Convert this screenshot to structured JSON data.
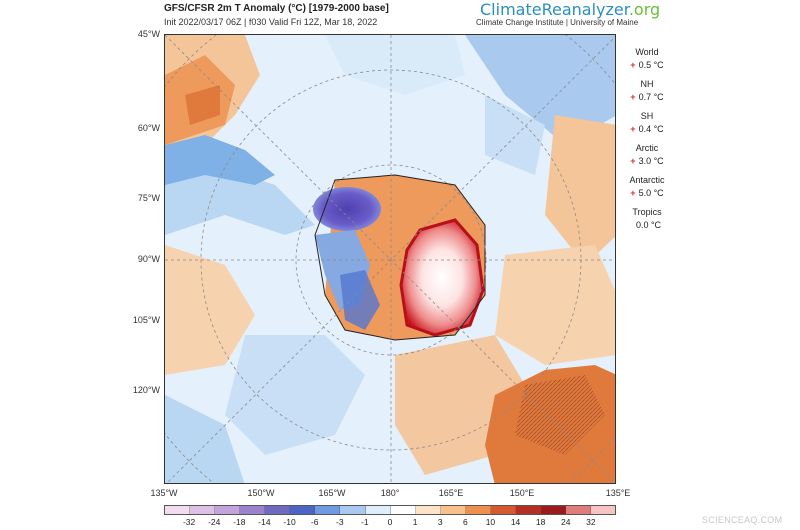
{
  "header": {
    "title": "GFS/CFSR 2m T Anomaly (°C) [1979-2000 base]",
    "subtitle": "Init 2022/03/17 06Z | f030 Valid Fri 12Z, Mar 18, 2022",
    "brand_main": "ClimateReanalyzer",
    "brand_suffix": ".org",
    "institution": "Climate Change Institute | University of Maine"
  },
  "map": {
    "projection": "polar stereographic, south pole",
    "lat_labels": [
      "45°W",
      "60°W",
      "75°W",
      "90°W",
      "105°W",
      "120°W"
    ],
    "lon_labels": [
      "135°W",
      "150°W",
      "165°W",
      "180°",
      "165°E",
      "150°E",
      "135°E"
    ],
    "regions": {
      "antarctic_interior_anomaly": "strong warm (red/white) over East Antarctica",
      "antarctic_peninsula_anomaly": "cold (blue/purple) over Weddell sector",
      "southern_ocean": "mixed light blue and orange",
      "south_america": "orange/warm with blue patches",
      "australia": "orange/warm with brown hatch"
    }
  },
  "stats": [
    {
      "name": "World",
      "sign": "+",
      "value": "0.5 °C"
    },
    {
      "name": "NH",
      "sign": "+",
      "value": "0.7 °C"
    },
    {
      "name": "SH",
      "sign": "+",
      "value": "0.4 °C"
    },
    {
      "name": "Arctic",
      "sign": "+",
      "value": "3.0 °C"
    },
    {
      "name": "Antarctic",
      "sign": "+",
      "value": "5.0 °C"
    },
    {
      "name": "Tropics",
      "sign": "",
      "value": "0.0 °C"
    }
  ],
  "colorbar": {
    "ticks": [
      "-32",
      "-24",
      "-18",
      "-14",
      "-10",
      "-6",
      "-3",
      "-1",
      "0",
      "1",
      "3",
      "6",
      "10",
      "14",
      "18",
      "24",
      "32"
    ],
    "colors": [
      "#f3dcef",
      "#dcc0e6",
      "#c3a3dc",
      "#9c82cc",
      "#7069c0",
      "#4c65c4",
      "#6f99e0",
      "#aac9f0",
      "#dfeefb",
      "#ffffff",
      "#fde4c8",
      "#f8c08a",
      "#ee8f4f",
      "#d65a2f",
      "#b52f24",
      "#9a1a1d",
      "#e07c7c",
      "#f7c4c4"
    ]
  },
  "watermark": "SCIENCEAQ.COM"
}
